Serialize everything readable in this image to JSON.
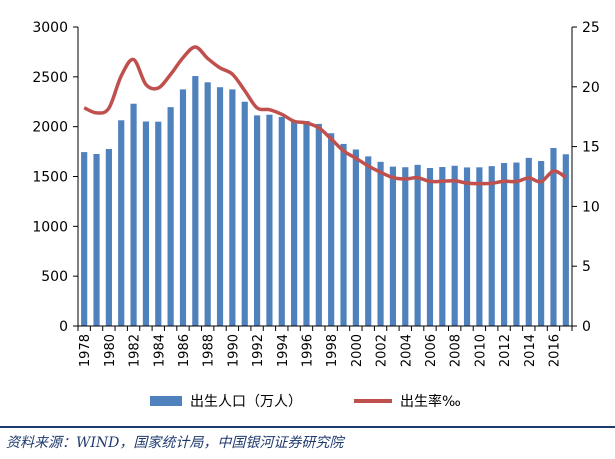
{
  "chart_data": {
    "type": "bar",
    "x": [
      1978,
      1979,
      1980,
      1981,
      1982,
      1983,
      1984,
      1985,
      1986,
      1987,
      1988,
      1989,
      1990,
      1991,
      1992,
      1993,
      1994,
      1995,
      1996,
      1997,
      1998,
      1999,
      2000,
      2001,
      2002,
      2003,
      2004,
      2005,
      2006,
      2007,
      2008,
      2009,
      2010,
      2011,
      2012,
      2013,
      2014,
      2015,
      2016,
      2017
    ],
    "x_tick_labels": [
      "1978",
      "1980",
      "1982",
      "1984",
      "1986",
      "1988",
      "1990",
      "1992",
      "1994",
      "1996",
      "1998",
      "2000",
      "2002",
      "2004",
      "2006",
      "2008",
      "2010",
      "2012",
      "2014",
      "2016"
    ],
    "series": [
      {
        "name": "出生人口（万人）",
        "type": "bar",
        "axis": "left",
        "color": "#4f81bd",
        "values": [
          1745,
          1726,
          1776,
          2064,
          2230,
          2052,
          2050,
          2196,
          2374,
          2508,
          2445,
          2396,
          2374,
          2250,
          2113,
          2120,
          2098,
          2052,
          2057,
          2028,
          1934,
          1827,
          1771,
          1702,
          1647,
          1599,
          1593,
          1617,
          1585,
          1595,
          1608,
          1591,
          1592,
          1604,
          1635,
          1640,
          1687,
          1655,
          1786,
          1723
        ]
      },
      {
        "name": "出生率‰",
        "type": "line",
        "axis": "right",
        "color": "#c0504d",
        "values": [
          18.25,
          17.82,
          18.21,
          20.91,
          22.28,
          20.19,
          19.9,
          21.04,
          22.43,
          23.33,
          22.37,
          21.58,
          21.06,
          19.68,
          18.24,
          18.09,
          17.7,
          17.12,
          16.98,
          16.57,
          15.64,
          14.64,
          14.03,
          13.38,
          12.86,
          12.41,
          12.29,
          12.4,
          12.09,
          12.1,
          12.14,
          11.95,
          11.9,
          11.93,
          12.1,
          12.08,
          12.37,
          12.07,
          12.95,
          12.43
        ]
      }
    ],
    "y_left": {
      "min": 0,
      "max": 3000,
      "ticks": [
        0,
        500,
        1000,
        1500,
        2000,
        2500,
        3000
      ]
    },
    "y_right": {
      "min": 0,
      "max": 25,
      "ticks": [
        0,
        5,
        10,
        15,
        20,
        25
      ]
    },
    "legend": {
      "placement": "bottom"
    },
    "grid": false
  },
  "footer": {
    "source": "资料来源：WIND，国家统计局，中国银河证券研究院"
  }
}
